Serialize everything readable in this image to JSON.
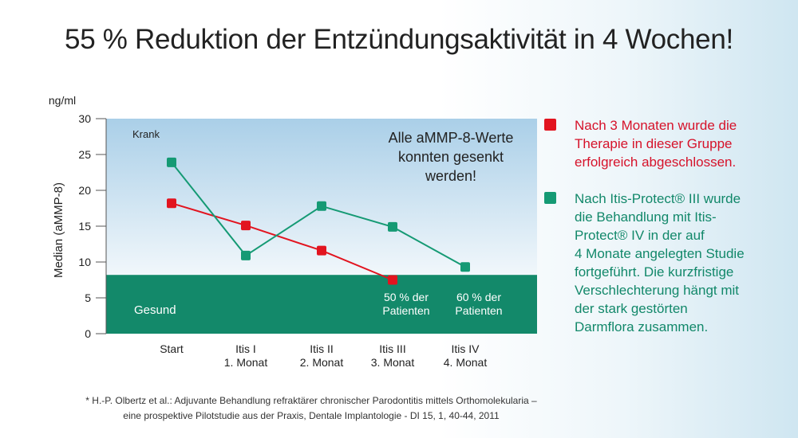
{
  "title": "55 % Reduktion der Entzündungsaktivität in 4 Wochen!",
  "chart_data": {
    "type": "line",
    "unit_label": "ng/ml",
    "ylabel": "Median (aMMP-8)",
    "ylim": [
      0,
      30
    ],
    "yticks": [
      0,
      5,
      10,
      15,
      20,
      25,
      30
    ],
    "categories": [
      [
        "Start"
      ],
      [
        "Itis I",
        "1. Monat"
      ],
      [
        "Itis II",
        "2. Monat"
      ],
      [
        "Itis III",
        "3. Monat"
      ],
      [
        "Itis IV",
        "4. Monat"
      ]
    ],
    "series": [
      {
        "color": "#e2141f",
        "values": [
          18.2,
          15.1,
          11.6,
          7.5,
          null
        ]
      },
      {
        "color": "#159a74",
        "values": [
          23.9,
          10.9,
          17.8,
          14.9,
          9.3
        ]
      }
    ],
    "healthy_band_max": 8.2,
    "region_labels": {
      "sick": "Krank",
      "healthy": "Gesund"
    },
    "annotation": [
      "Alle aMMP-8-Werte",
      "konnten gesenkt",
      "werden!"
    ],
    "point_labels": [
      {
        "category_index": 3,
        "lines": [
          "50 % der",
          "Patienten"
        ]
      },
      {
        "category_index": 4,
        "lines": [
          "60 % der",
          "Patienten"
        ]
      }
    ],
    "colors": {
      "sick_top": "#aacfe8",
      "sick_bottom": "#f1f7fb",
      "healthy": "#13896a",
      "axis": "#555555"
    }
  },
  "legend": [
    {
      "color": "#e2141f",
      "lines": [
        "Nach 3 Monaten wurde die",
        "Therapie in dieser Gruppe",
        "erfolgreich abgeschlossen."
      ]
    },
    {
      "color": "#159a74",
      "lines": [
        "Nach Itis-Protect® III wurde",
        "die Behandlung mit Itis-",
        "Protect® IV in  der auf",
        "4 Monate angelegten Studie",
        "fortgeführt. Die kurzfristige",
        "Verschlechterung hängt mit",
        "der stark gestörten",
        "Darmflora zusammen."
      ]
    }
  ],
  "footnote": [
    "* H.-P. Olbertz et al.: Adjuvante Behandlung refraktärer chronischer Parodontitis mittels Orthomolekularia –",
    "eine prospektive Pilotstudie aus der Praxis, Dentale Implantologie - DI 15, 1, 40-44, 2011"
  ]
}
